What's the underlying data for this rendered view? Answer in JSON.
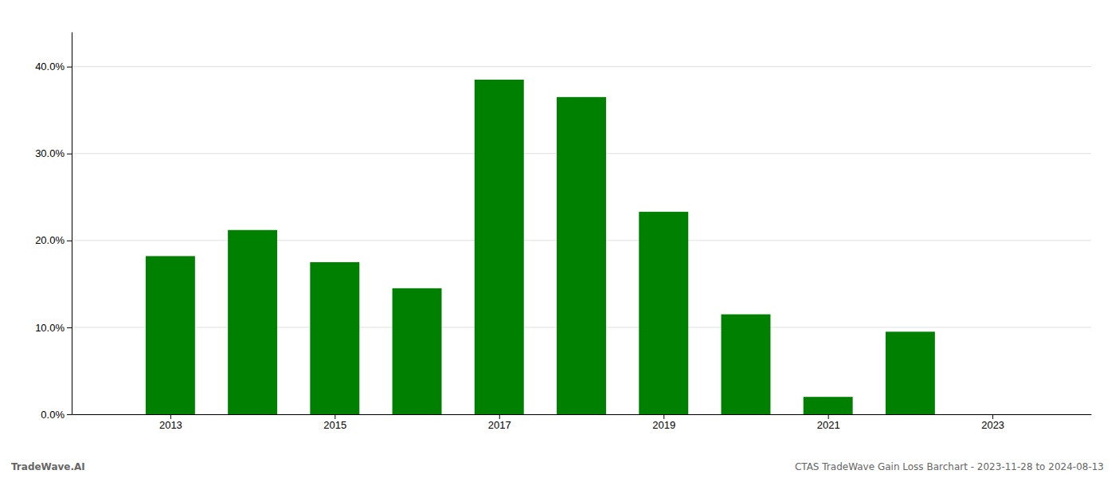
{
  "chart_data": {
    "type": "bar",
    "x": [
      2013,
      2014,
      2015,
      2016,
      2017,
      2018,
      2019,
      2020,
      2021,
      2022
    ],
    "values": [
      0.182,
      0.212,
      0.175,
      0.145,
      0.385,
      0.365,
      0.233,
      0.115,
      0.02,
      0.095
    ],
    "color": "#008000",
    "xlim": [
      2011.8,
      2024.2
    ],
    "xticks": [
      2013,
      2015,
      2017,
      2019,
      2021,
      2023
    ],
    "ylim": [
      0,
      0.44
    ],
    "yticks": [
      {
        "value": 0.0,
        "label": "0.0%"
      },
      {
        "value": 0.1,
        "label": "10.0%"
      },
      {
        "value": 0.2,
        "label": "20.0%"
      },
      {
        "value": 0.3,
        "label": "30.0%"
      },
      {
        "value": 0.4,
        "label": "40.0%"
      }
    ],
    "grid": true,
    "annotations": [
      "TradeWave.AI",
      "CTAS TradeWave Gain Loss Barchart - 2023-11-28 to 2024-08-13"
    ]
  }
}
